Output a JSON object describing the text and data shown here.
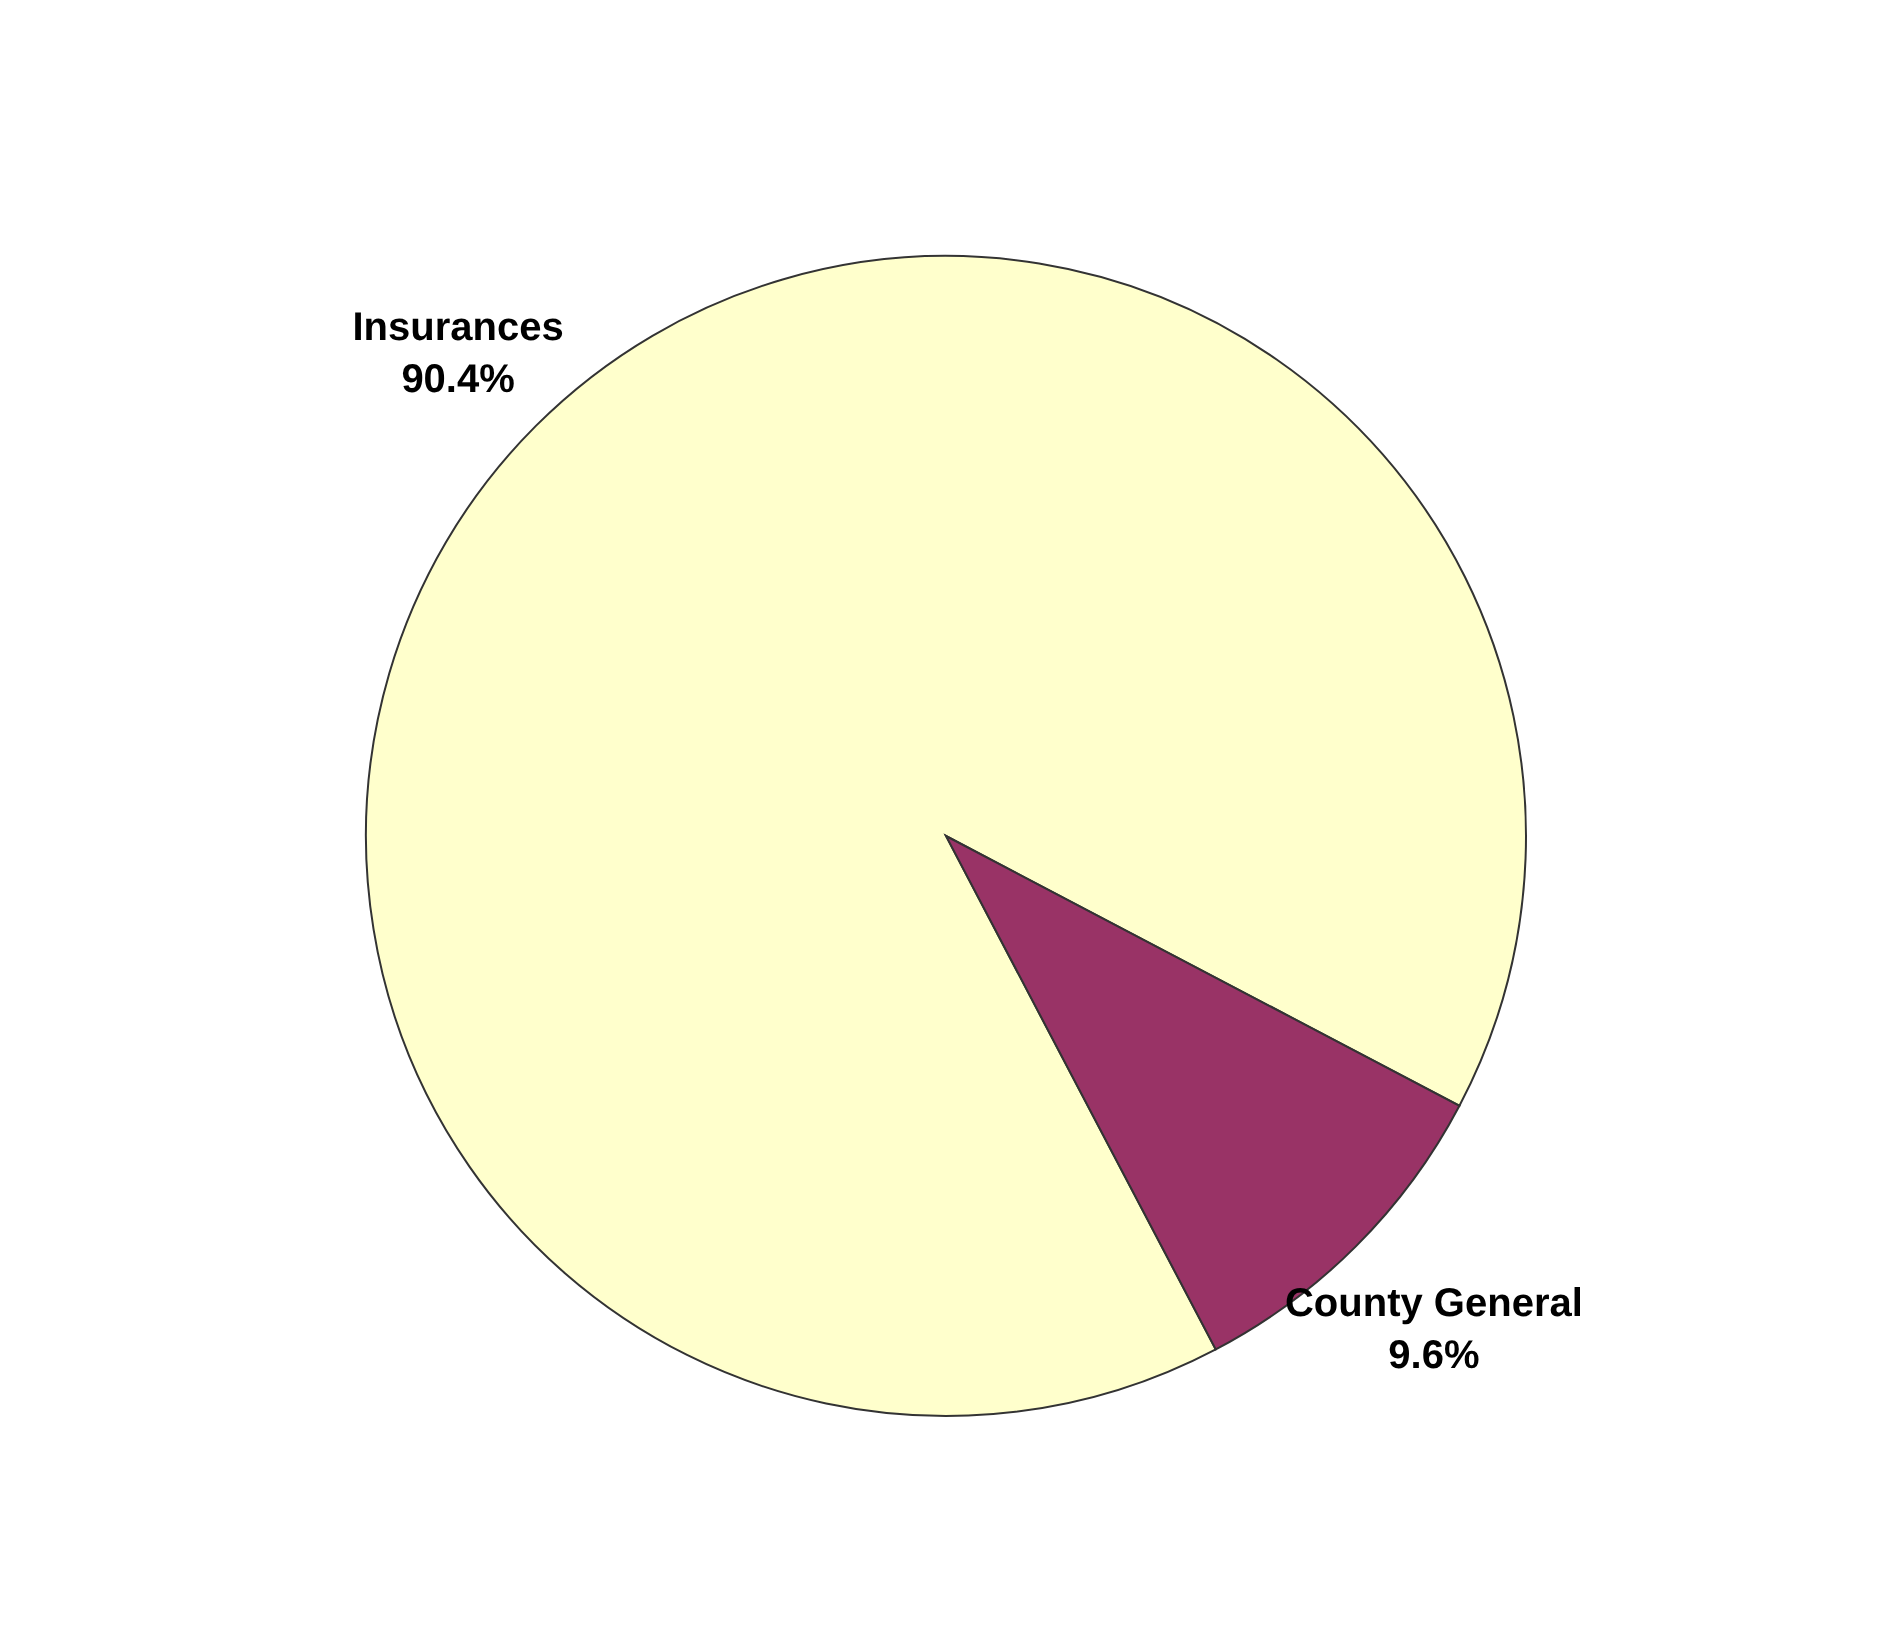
{
  "chart_data": {
    "type": "pie",
    "categories": [
      "Insurances",
      "County General"
    ],
    "values": [
      90.4,
      9.6
    ],
    "colors": [
      "#ffffcc",
      "#993366"
    ],
    "value_labels": [
      "90.4%",
      "9.6%"
    ]
  }
}
